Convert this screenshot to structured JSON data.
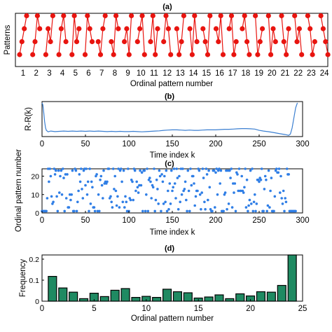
{
  "colors": {
    "pattern_red": "#e8140f",
    "line_blue": "#3b7fd1",
    "dot_blue": "#2f7ee6",
    "bar_green": "#1f8a62",
    "bar_edge": "#000000"
  },
  "chart_data": [
    {
      "id": "a",
      "type": "scatter",
      "title": "(a)",
      "xlabel": "Ordinal pattern number",
      "ylabel": "Patterns",
      "x_ticks": [
        "1",
        "2",
        "3",
        "4",
        "5",
        "6",
        "7",
        "8",
        "9",
        "10",
        "11",
        "12",
        "13",
        "14",
        "15",
        "16",
        "17",
        "18",
        "19",
        "20",
        "21",
        "22",
        "23",
        "24"
      ],
      "description": "Each of the 24 ordinal patterns of order 4 drawn as 4 connected points (values 0-3)",
      "patterns": [
        [
          0,
          1,
          2,
          3
        ],
        [
          0,
          1,
          3,
          2
        ],
        [
          0,
          2,
          1,
          3
        ],
        [
          0,
          2,
          3,
          1
        ],
        [
          0,
          3,
          1,
          2
        ],
        [
          0,
          3,
          2,
          1
        ],
        [
          1,
          0,
          2,
          3
        ],
        [
          1,
          0,
          3,
          2
        ],
        [
          1,
          2,
          0,
          3
        ],
        [
          1,
          2,
          3,
          0
        ],
        [
          1,
          3,
          0,
          2
        ],
        [
          1,
          3,
          2,
          0
        ],
        [
          2,
          0,
          1,
          3
        ],
        [
          2,
          0,
          3,
          1
        ],
        [
          2,
          1,
          0,
          3
        ],
        [
          2,
          1,
          3,
          0
        ],
        [
          2,
          3,
          0,
          1
        ],
        [
          2,
          3,
          1,
          0
        ],
        [
          3,
          0,
          1,
          2
        ],
        [
          3,
          0,
          2,
          1
        ],
        [
          3,
          1,
          0,
          2
        ],
        [
          3,
          1,
          2,
          0
        ],
        [
          3,
          2,
          0,
          1
        ],
        [
          3,
          2,
          1,
          0
        ]
      ],
      "grid": false
    },
    {
      "id": "b",
      "type": "line",
      "title": "(b)",
      "xlabel": "Time index k",
      "ylabel": "R-R(k)",
      "xlim": [
        0,
        300
      ],
      "ylim": [
        -0.55,
        0.85
      ],
      "x_ticks": [
        0,
        50,
        100,
        150,
        200,
        250,
        300
      ],
      "points": [
        [
          0,
          0.8
        ],
        [
          1,
          0.72
        ],
        [
          2,
          0.4
        ],
        [
          3,
          0.05
        ],
        [
          4,
          -0.2
        ],
        [
          5,
          -0.3
        ],
        [
          7,
          -0.36
        ],
        [
          10,
          -0.33
        ],
        [
          15,
          -0.35
        ],
        [
          20,
          -0.34
        ],
        [
          25,
          -0.33
        ],
        [
          30,
          -0.34
        ],
        [
          35,
          -0.33
        ],
        [
          40,
          -0.34
        ],
        [
          45,
          -0.33
        ],
        [
          50,
          -0.34
        ],
        [
          55,
          -0.33
        ],
        [
          60,
          -0.34
        ],
        [
          65,
          -0.33
        ],
        [
          70,
          -0.34
        ],
        [
          75,
          -0.35
        ],
        [
          80,
          -0.34
        ],
        [
          85,
          -0.35
        ],
        [
          90,
          -0.34
        ],
        [
          95,
          -0.35
        ],
        [
          100,
          -0.35
        ],
        [
          105,
          -0.34
        ],
        [
          110,
          -0.35
        ],
        [
          115,
          -0.36
        ],
        [
          120,
          -0.35
        ],
        [
          125,
          -0.34
        ],
        [
          130,
          -0.33
        ],
        [
          135,
          -0.32
        ],
        [
          140,
          -0.3
        ],
        [
          145,
          -0.29
        ],
        [
          150,
          -0.28
        ],
        [
          155,
          -0.28
        ],
        [
          160,
          -0.29
        ],
        [
          165,
          -0.3
        ],
        [
          170,
          -0.29
        ],
        [
          175,
          -0.3
        ],
        [
          180,
          -0.3
        ],
        [
          185,
          -0.29
        ],
        [
          190,
          -0.28
        ],
        [
          195,
          -0.28
        ],
        [
          200,
          -0.28
        ],
        [
          205,
          -0.27
        ],
        [
          210,
          -0.26
        ],
        [
          215,
          -0.26
        ],
        [
          220,
          -0.25
        ],
        [
          225,
          -0.24
        ],
        [
          230,
          -0.23
        ],
        [
          235,
          -0.23
        ],
        [
          240,
          -0.24
        ],
        [
          245,
          -0.25
        ],
        [
          250,
          -0.3
        ],
        [
          255,
          -0.33
        ],
        [
          260,
          -0.35
        ],
        [
          265,
          -0.38
        ],
        [
          270,
          -0.41
        ],
        [
          275,
          -0.44
        ],
        [
          280,
          -0.47
        ],
        [
          284,
          -0.5
        ],
        [
          286,
          -0.45
        ],
        [
          288,
          -0.2
        ],
        [
          290,
          0.2
        ],
        [
          292,
          0.6
        ],
        [
          294,
          0.8
        ]
      ]
    },
    {
      "id": "c",
      "type": "scatter",
      "title": "(c)",
      "xlabel": "Time index k",
      "ylabel": "Ordinal pattern number",
      "xlim": [
        0,
        300
      ],
      "ylim": [
        0,
        24
      ],
      "x_ticks": [
        0,
        50,
        100,
        150,
        200,
        250,
        300
      ],
      "y_ticks": [
        0,
        10,
        20
      ],
      "n_points": 293,
      "description": "Each time index k from 0 to about 292 mapped to an ordinal pattern number from 1 to 24; values cluster at 1 at the start and end and at 23-24"
    },
    {
      "id": "d",
      "type": "bar",
      "title": "(d)",
      "xlabel": "Ordinal pattern number",
      "ylabel": "Frequency",
      "xlim": [
        0,
        25
      ],
      "ylim": [
        0,
        0.22
      ],
      "x_ticks": [
        0,
        5,
        10,
        15,
        20,
        25
      ],
      "y_ticks": [
        0,
        0.1,
        0.2
      ],
      "categories": [
        1,
        2,
        3,
        4,
        5,
        6,
        7,
        8,
        9,
        10,
        11,
        12,
        13,
        14,
        15,
        16,
        17,
        18,
        19,
        20,
        21,
        22,
        23,
        24
      ],
      "values": [
        0.118,
        0.063,
        0.043,
        0.012,
        0.038,
        0.022,
        0.052,
        0.06,
        0.018,
        0.023,
        0.018,
        0.057,
        0.045,
        0.04,
        0.015,
        0.02,
        0.03,
        0.012,
        0.035,
        0.025,
        0.045,
        0.043,
        0.075,
        0.22
      ]
    }
  ]
}
